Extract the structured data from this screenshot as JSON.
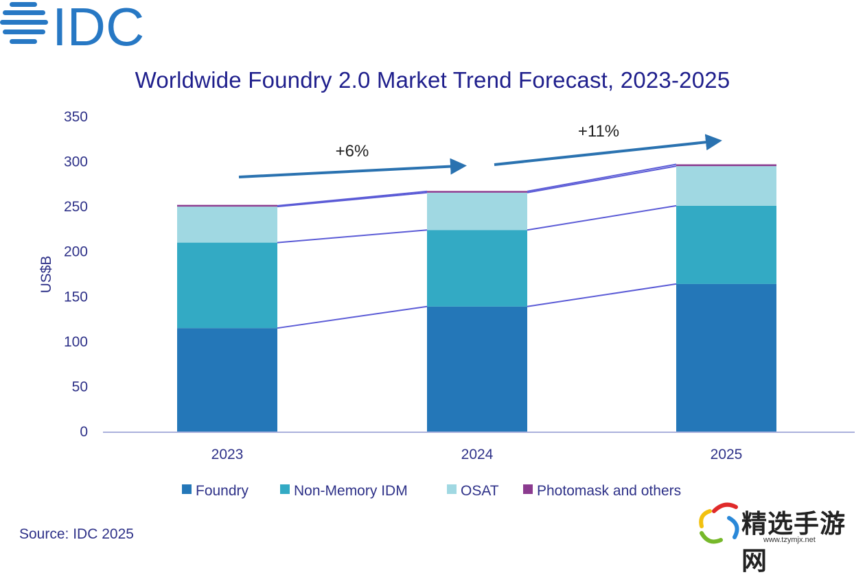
{
  "logo": {
    "text": "IDC",
    "icon": "idc-globe-logo-icon",
    "color": "#2778c4"
  },
  "title": "Worldwide Foundry 2.0 Market Trend Forecast, 2023-2025",
  "source": "Source: IDC 2025",
  "watermark": {
    "text": "精选手游网",
    "url": "www.tzymjx.net",
    "icon": "pinwheel-logo-icon"
  },
  "chart_data": {
    "type": "bar",
    "stacked": true,
    "title": "Worldwide Foundry 2.0 Market Trend Forecast, 2023-2025",
    "xlabel": "",
    "ylabel": "US$B",
    "ylim": [
      0,
      350
    ],
    "yticks": [
      0,
      50,
      100,
      150,
      200,
      250,
      300,
      350
    ],
    "grid": false,
    "categories": [
      "2023",
      "2024",
      "2025"
    ],
    "series": [
      {
        "name": "Foundry",
        "color": "#2477b8",
        "values": [
          115,
          139,
          164
        ]
      },
      {
        "name": "Non-Memory IDM",
        "color": "#33aac4",
        "values": [
          95,
          85,
          87
        ]
      },
      {
        "name": "OSAT",
        "color": "#a0d8e2",
        "values": [
          40,
          41.5,
          44
        ]
      },
      {
        "name": "Photomask and others",
        "color": "#8b3b8f",
        "values": [
          1,
          1.5,
          2
        ]
      }
    ],
    "connector_color": "#5b5bd6",
    "legend": {
      "position": "bottom"
    },
    "annotations": [
      {
        "text": "+6%",
        "from": "2023",
        "to": "2024",
        "arrow_color": "#2a72b0"
      },
      {
        "text": "+11%",
        "from": "2024",
        "to": "2025",
        "arrow_color": "#2a72b0"
      }
    ]
  }
}
